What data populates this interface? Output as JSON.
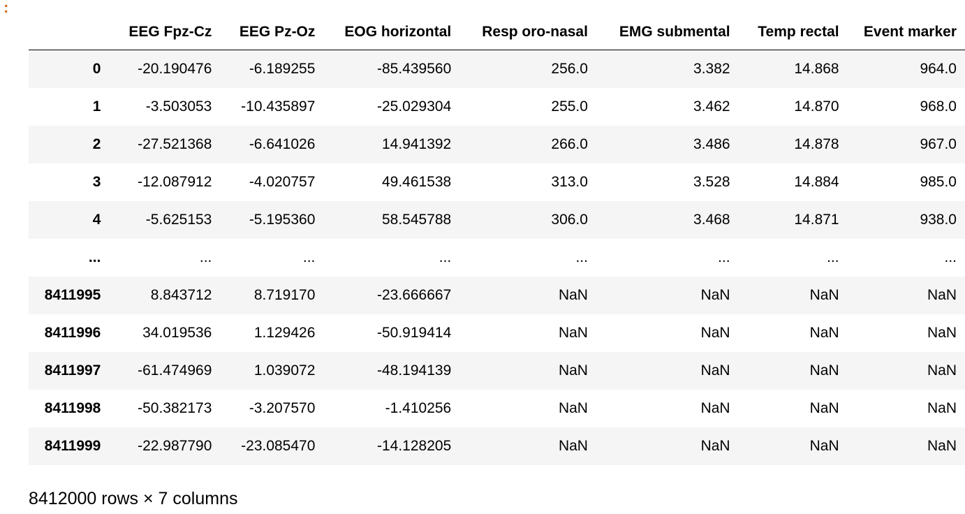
{
  "prompt": ":",
  "table": {
    "columns": [
      "EEG Fpz-Cz",
      "EEG Pz-Oz",
      "EOG horizontal",
      "Resp oro-nasal",
      "EMG submental",
      "Temp rectal",
      "Event marker"
    ],
    "rows": [
      {
        "index": "0",
        "cells": [
          "-20.190476",
          "-6.189255",
          "-85.439560",
          "256.0",
          "3.382",
          "14.868",
          "964.0"
        ]
      },
      {
        "index": "1",
        "cells": [
          "-3.503053",
          "-10.435897",
          "-25.029304",
          "255.0",
          "3.462",
          "14.870",
          "968.0"
        ]
      },
      {
        "index": "2",
        "cells": [
          "-27.521368",
          "-6.641026",
          "14.941392",
          "266.0",
          "3.486",
          "14.878",
          "967.0"
        ]
      },
      {
        "index": "3",
        "cells": [
          "-12.087912",
          "-4.020757",
          "49.461538",
          "313.0",
          "3.528",
          "14.884",
          "985.0"
        ]
      },
      {
        "index": "4",
        "cells": [
          "-5.625153",
          "-5.195360",
          "58.545788",
          "306.0",
          "3.468",
          "14.871",
          "938.0"
        ]
      },
      {
        "index": "...",
        "cells": [
          "...",
          "...",
          "...",
          "...",
          "...",
          "...",
          "..."
        ]
      },
      {
        "index": "8411995",
        "cells": [
          "8.843712",
          "8.719170",
          "-23.666667",
          "NaN",
          "NaN",
          "NaN",
          "NaN"
        ]
      },
      {
        "index": "8411996",
        "cells": [
          "34.019536",
          "1.129426",
          "-50.919414",
          "NaN",
          "NaN",
          "NaN",
          "NaN"
        ]
      },
      {
        "index": "8411997",
        "cells": [
          "-61.474969",
          "1.039072",
          "-48.194139",
          "NaN",
          "NaN",
          "NaN",
          "NaN"
        ]
      },
      {
        "index": "8411998",
        "cells": [
          "-50.382173",
          "-3.207570",
          "-1.410256",
          "NaN",
          "NaN",
          "NaN",
          "NaN"
        ]
      },
      {
        "index": "8411999",
        "cells": [
          "-22.987790",
          "-23.085470",
          "-14.128205",
          "NaN",
          "NaN",
          "NaN",
          "NaN"
        ]
      }
    ]
  },
  "footer": "8412000 rows × 7 columns"
}
